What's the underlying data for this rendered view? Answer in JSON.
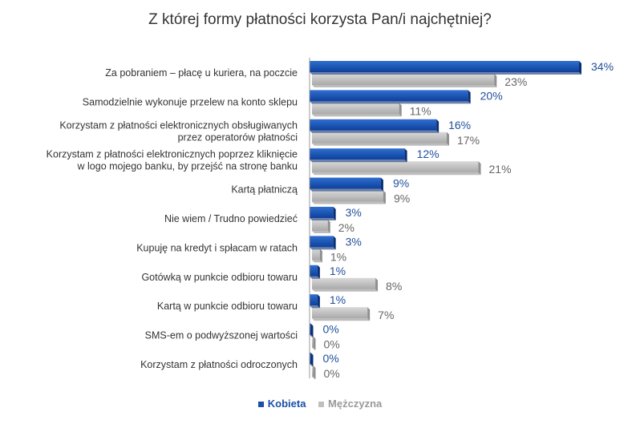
{
  "chart_data": {
    "type": "bar",
    "orientation": "horizontal",
    "title": "Z której formy płatności korzysta Pan/i najchętniej?",
    "categories": [
      "Za pobraniem – płacę u kuriera, na poczcie",
      "Samodzielnie wykonuje przelew na konto sklepu",
      "Korzystam z płatności elektronicznych obsługiwanych przez operatorów płatności",
      "Korzystam z płatności elektronicznych poprzez kliknięcie w logo mojego banku, by przejść na stronę banku",
      "Kartą płatniczą",
      "Nie wiem / Trudno powiedzieć",
      "Kupuję na kredyt i spłacam w ratach",
      "Gotówką w punkcie odbioru towaru",
      "Kartą w punkcie odbioru towaru",
      "SMS-em  o podwyższonej wartości",
      "Korzystam z płatności odroczonych"
    ],
    "category_lines": [
      [
        "Za pobraniem – płacę u kuriera, na poczcie"
      ],
      [
        "Samodzielnie wykonuje przelew na konto sklepu"
      ],
      [
        "Korzystam z płatności elektronicznych obsługiwanych",
        "przez operatorów płatności"
      ],
      [
        "Korzystam z płatności elektronicznych poprzez kliknięcie",
        "w logo mojego banku, by przejść na stronę banku"
      ],
      [
        "Kartą płatniczą"
      ],
      [
        "Nie wiem / Trudno powiedzieć"
      ],
      [
        "Kupuję na kredyt i spłacam w ratach"
      ],
      [
        "Gotówką w punkcie odbioru towaru"
      ],
      [
        "Kartą w punkcie odbioru towaru"
      ],
      [
        "SMS-em  o podwyższonej wartości"
      ],
      [
        "Korzystam z płatności odroczonych"
      ]
    ],
    "series": [
      {
        "name": "Kobieta",
        "color": "#1a4fa8",
        "values": [
          34,
          20,
          16,
          12,
          9,
          3,
          3,
          1,
          1,
          0,
          0
        ],
        "labels": [
          "34%",
          "20%",
          "16%",
          "12%",
          "9%",
          "3%",
          "3%",
          "1%",
          "1%",
          "0%",
          "0%"
        ]
      },
      {
        "name": "Mężczyzna",
        "color": "#bfbfbf",
        "values": [
          23,
          11,
          17,
          21,
          9,
          2,
          1,
          8,
          7,
          0,
          0
        ],
        "labels": [
          "23%",
          "11%",
          "17%",
          "21%",
          "9%",
          "2%",
          "1%",
          "8%",
          "7%",
          "0%",
          "0%"
        ]
      }
    ],
    "value_unit": "%",
    "xlim": [
      0,
      34
    ],
    "grid": false,
    "legend_position": "bottom"
  }
}
